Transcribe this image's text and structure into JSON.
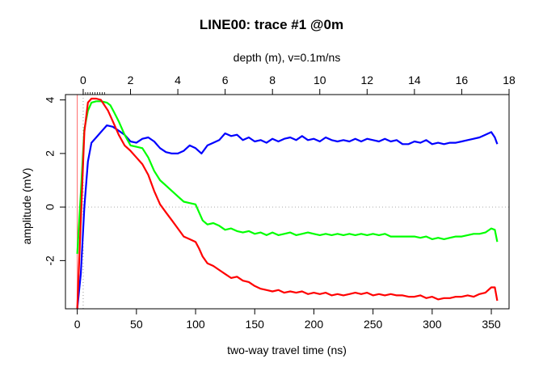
{
  "chart_data": {
    "type": "line",
    "title": "LINE00: trace #1  @0m",
    "xlabel": "two-way travel time (ns)",
    "ylabel": "amplitude (mV)",
    "top_axis_label": "depth (m),   v=0.1m/ns",
    "xlim": [
      -10,
      365
    ],
    "ylim": [
      -3.8,
      4.2
    ],
    "x_ticks": [
      0,
      50,
      100,
      150,
      200,
      250,
      300,
      350
    ],
    "y_ticks": [
      -2,
      0,
      2,
      4
    ],
    "top_ticks": [
      0,
      2,
      4,
      6,
      8,
      10,
      12,
      14,
      16,
      18
    ],
    "top_axis_ns_per_m": 20,
    "top_axis_offset_ns": 5,
    "zero_line": 0,
    "vertical_markers": [
      {
        "x": 0,
        "color": "#ff6666"
      },
      {
        "x": 5,
        "color": "#999999",
        "style": "dotted"
      }
    ],
    "series": [
      {
        "color": "#0000ff",
        "points": [
          [
            0,
            -3.8
          ],
          [
            3,
            -2.5
          ],
          [
            6,
            0
          ],
          [
            9,
            1.7
          ],
          [
            12,
            2.4
          ],
          [
            16,
            2.6
          ],
          [
            20,
            2.8
          ],
          [
            25,
            3.05
          ],
          [
            30,
            3.0
          ],
          [
            35,
            2.85
          ],
          [
            40,
            2.7
          ],
          [
            45,
            2.45
          ],
          [
            50,
            2.4
          ],
          [
            55,
            2.55
          ],
          [
            60,
            2.6
          ],
          [
            65,
            2.45
          ],
          [
            70,
            2.2
          ],
          [
            75,
            2.05
          ],
          [
            80,
            2.0
          ],
          [
            85,
            2.0
          ],
          [
            90,
            2.1
          ],
          [
            95,
            2.3
          ],
          [
            100,
            2.2
          ],
          [
            105,
            2.0
          ],
          [
            110,
            2.3
          ],
          [
            115,
            2.4
          ],
          [
            120,
            2.5
          ],
          [
            125,
            2.75
          ],
          [
            130,
            2.65
          ],
          [
            135,
            2.7
          ],
          [
            140,
            2.5
          ],
          [
            145,
            2.6
          ],
          [
            150,
            2.45
          ],
          [
            155,
            2.5
          ],
          [
            160,
            2.4
          ],
          [
            165,
            2.55
          ],
          [
            170,
            2.45
          ],
          [
            175,
            2.55
          ],
          [
            180,
            2.6
          ],
          [
            185,
            2.5
          ],
          [
            190,
            2.65
          ],
          [
            195,
            2.5
          ],
          [
            200,
            2.55
          ],
          [
            205,
            2.45
          ],
          [
            210,
            2.6
          ],
          [
            215,
            2.5
          ],
          [
            220,
            2.45
          ],
          [
            225,
            2.5
          ],
          [
            230,
            2.45
          ],
          [
            235,
            2.55
          ],
          [
            240,
            2.45
          ],
          [
            245,
            2.55
          ],
          [
            250,
            2.5
          ],
          [
            255,
            2.45
          ],
          [
            260,
            2.55
          ],
          [
            265,
            2.45
          ],
          [
            270,
            2.5
          ],
          [
            275,
            2.35
          ],
          [
            280,
            2.35
          ],
          [
            285,
            2.45
          ],
          [
            290,
            2.4
          ],
          [
            295,
            2.5
          ],
          [
            300,
            2.35
          ],
          [
            305,
            2.4
          ],
          [
            310,
            2.35
          ],
          [
            315,
            2.4
          ],
          [
            320,
            2.4
          ],
          [
            325,
            2.45
          ],
          [
            330,
            2.5
          ],
          [
            335,
            2.55
          ],
          [
            340,
            2.6
          ],
          [
            345,
            2.7
          ],
          [
            350,
            2.8
          ],
          [
            353,
            2.6
          ],
          [
            355,
            2.35
          ]
        ]
      },
      {
        "color": "#00ff00",
        "points": [
          [
            0,
            -1.75
          ],
          [
            3,
            0.5
          ],
          [
            6,
            2.9
          ],
          [
            9,
            3.6
          ],
          [
            12,
            3.9
          ],
          [
            16,
            3.95
          ],
          [
            20,
            3.95
          ],
          [
            25,
            3.9
          ],
          [
            28,
            3.8
          ],
          [
            31,
            3.55
          ],
          [
            35,
            3.2
          ],
          [
            40,
            2.7
          ],
          [
            45,
            2.3
          ],
          [
            50,
            2.25
          ],
          [
            55,
            2.2
          ],
          [
            60,
            1.85
          ],
          [
            65,
            1.35
          ],
          [
            70,
            1.0
          ],
          [
            75,
            0.8
          ],
          [
            80,
            0.6
          ],
          [
            85,
            0.4
          ],
          [
            90,
            0.2
          ],
          [
            95,
            0.15
          ],
          [
            100,
            0.1
          ],
          [
            103,
            -0.2
          ],
          [
            106,
            -0.5
          ],
          [
            110,
            -0.65
          ],
          [
            115,
            -0.6
          ],
          [
            120,
            -0.7
          ],
          [
            125,
            -0.85
          ],
          [
            130,
            -0.8
          ],
          [
            135,
            -0.9
          ],
          [
            140,
            -0.95
          ],
          [
            145,
            -0.9
          ],
          [
            150,
            -1.0
          ],
          [
            155,
            -0.95
          ],
          [
            160,
            -1.05
          ],
          [
            165,
            -0.95
          ],
          [
            170,
            -1.05
          ],
          [
            175,
            -1.0
          ],
          [
            180,
            -0.95
          ],
          [
            185,
            -1.05
          ],
          [
            190,
            -1.0
          ],
          [
            195,
            -0.95
          ],
          [
            200,
            -1.0
          ],
          [
            205,
            -1.05
          ],
          [
            210,
            -1.0
          ],
          [
            215,
            -1.05
          ],
          [
            220,
            -1.0
          ],
          [
            225,
            -1.05
          ],
          [
            230,
            -1.0
          ],
          [
            235,
            -1.05
          ],
          [
            240,
            -1.0
          ],
          [
            245,
            -1.05
          ],
          [
            250,
            -1.0
          ],
          [
            255,
            -1.05
          ],
          [
            260,
            -1.0
          ],
          [
            265,
            -1.1
          ],
          [
            270,
            -1.1
          ],
          [
            275,
            -1.1
          ],
          [
            280,
            -1.1
          ],
          [
            285,
            -1.1
          ],
          [
            290,
            -1.15
          ],
          [
            295,
            -1.1
          ],
          [
            300,
            -1.2
          ],
          [
            305,
            -1.15
          ],
          [
            310,
            -1.2
          ],
          [
            315,
            -1.15
          ],
          [
            320,
            -1.1
          ],
          [
            325,
            -1.1
          ],
          [
            330,
            -1.05
          ],
          [
            335,
            -1.0
          ],
          [
            340,
            -1.0
          ],
          [
            345,
            -0.95
          ],
          [
            350,
            -0.8
          ],
          [
            353,
            -0.85
          ],
          [
            355,
            -1.3
          ]
        ]
      },
      {
        "color": "#ff0000",
        "points": [
          [
            0,
            -3.8
          ],
          [
            3,
            -0.5
          ],
          [
            6,
            2.8
          ],
          [
            9,
            3.9
          ],
          [
            12,
            4.05
          ],
          [
            16,
            4.05
          ],
          [
            20,
            4.0
          ],
          [
            23,
            3.8
          ],
          [
            26,
            3.6
          ],
          [
            30,
            3.2
          ],
          [
            35,
            2.7
          ],
          [
            40,
            2.3
          ],
          [
            45,
            2.1
          ],
          [
            50,
            1.85
          ],
          [
            55,
            1.6
          ],
          [
            60,
            1.2
          ],
          [
            65,
            0.6
          ],
          [
            70,
            0.1
          ],
          [
            75,
            -0.2
          ],
          [
            80,
            -0.5
          ],
          [
            85,
            -0.8
          ],
          [
            90,
            -1.1
          ],
          [
            95,
            -1.2
          ],
          [
            100,
            -1.3
          ],
          [
            103,
            -1.55
          ],
          [
            106,
            -1.85
          ],
          [
            110,
            -2.1
          ],
          [
            115,
            -2.2
          ],
          [
            120,
            -2.35
          ],
          [
            125,
            -2.5
          ],
          [
            130,
            -2.65
          ],
          [
            135,
            -2.6
          ],
          [
            140,
            -2.75
          ],
          [
            145,
            -2.8
          ],
          [
            150,
            -2.95
          ],
          [
            155,
            -3.05
          ],
          [
            160,
            -3.1
          ],
          [
            165,
            -3.15
          ],
          [
            170,
            -3.1
          ],
          [
            175,
            -3.2
          ],
          [
            180,
            -3.15
          ],
          [
            185,
            -3.2
          ],
          [
            190,
            -3.15
          ],
          [
            195,
            -3.25
          ],
          [
            200,
            -3.2
          ],
          [
            205,
            -3.25
          ],
          [
            210,
            -3.2
          ],
          [
            215,
            -3.3
          ],
          [
            220,
            -3.25
          ],
          [
            225,
            -3.3
          ],
          [
            230,
            -3.25
          ],
          [
            235,
            -3.2
          ],
          [
            240,
            -3.25
          ],
          [
            245,
            -3.2
          ],
          [
            250,
            -3.3
          ],
          [
            255,
            -3.25
          ],
          [
            260,
            -3.3
          ],
          [
            265,
            -3.25
          ],
          [
            270,
            -3.3
          ],
          [
            275,
            -3.3
          ],
          [
            280,
            -3.35
          ],
          [
            285,
            -3.35
          ],
          [
            290,
            -3.3
          ],
          [
            295,
            -3.4
          ],
          [
            300,
            -3.35
          ],
          [
            305,
            -3.45
          ],
          [
            310,
            -3.4
          ],
          [
            315,
            -3.4
          ],
          [
            320,
            -3.35
          ],
          [
            325,
            -3.35
          ],
          [
            330,
            -3.3
          ],
          [
            335,
            -3.35
          ],
          [
            340,
            -3.25
          ],
          [
            345,
            -3.2
          ],
          [
            350,
            -3.0
          ],
          [
            353,
            -3.0
          ],
          [
            355,
            -3.5
          ]
        ]
      }
    ]
  }
}
